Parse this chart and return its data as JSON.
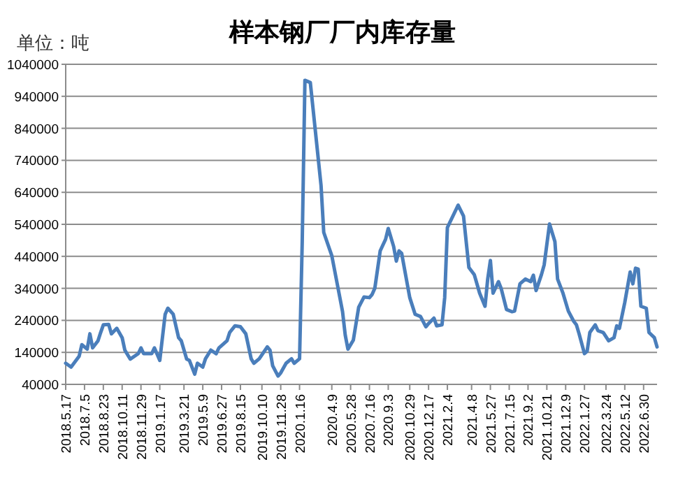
{
  "chart_data": {
    "type": "line",
    "title": "样本钢厂厂内库存量",
    "ylabel": "单位：吨",
    "color": "#4a7ebb",
    "grid": "y",
    "ylim": [
      40000,
      1040000
    ],
    "yticks": [
      40000,
      140000,
      240000,
      340000,
      440000,
      540000,
      640000,
      740000,
      840000,
      940000,
      1040000
    ],
    "xlim": [
      "2018-05-17",
      "2022-08-04"
    ],
    "xticks": [
      {
        "value": "2018-05-17",
        "label": "2018.5.17"
      },
      {
        "value": "2018-07-05",
        "label": "2018.7.5"
      },
      {
        "value": "2018-08-23",
        "label": "2018.8.23"
      },
      {
        "value": "2018-10-11",
        "label": "2018.10.11"
      },
      {
        "value": "2018-11-29",
        "label": "2018.11.29"
      },
      {
        "value": "2019-01-17",
        "label": "2019.1.17"
      },
      {
        "value": "2019-03-21",
        "label": "2019.3.21"
      },
      {
        "value": "2019-05-09",
        "label": "2019.5.9"
      },
      {
        "value": "2019-06-27",
        "label": "2019.6.27"
      },
      {
        "value": "2019-08-15",
        "label": "2019.8.15"
      },
      {
        "value": "2019-10-10",
        "label": "2019.10.10"
      },
      {
        "value": "2019-11-28",
        "label": "2019.11.28"
      },
      {
        "value": "2020-01-16",
        "label": "2020.1.16"
      },
      {
        "value": "2020-04-09",
        "label": "2020.4.9"
      },
      {
        "value": "2020-05-28",
        "label": "2020.5.28"
      },
      {
        "value": "2020-07-16",
        "label": "2020.7.16"
      },
      {
        "value": "2020-09-03",
        "label": "2020.9.3"
      },
      {
        "value": "2020-10-29",
        "label": "2020.10.29"
      },
      {
        "value": "2020-12-17",
        "label": "2020.12.17"
      },
      {
        "value": "2021-02-04",
        "label": "2021.2.4"
      },
      {
        "value": "2021-04-08",
        "label": "2021.4.8"
      },
      {
        "value": "2021-05-27",
        "label": "2021.5.27"
      },
      {
        "value": "2021-07-15",
        "label": "2021.7.15"
      },
      {
        "value": "2021-09-02",
        "label": "2021.9.2"
      },
      {
        "value": "2021-10-21",
        "label": "2021.10.21"
      },
      {
        "value": "2021-12-09",
        "label": "2021.12.9"
      },
      {
        "value": "2022-01-27",
        "label": "2022.1.27"
      },
      {
        "value": "2022-03-24",
        "label": "2022.3.24"
      },
      {
        "value": "2022-05-12",
        "label": "2022.5.12"
      },
      {
        "value": "2022-06-30",
        "label": "2022.6.30"
      }
    ],
    "x": [
      "2018-05-17",
      "2018-05-31",
      "2018-06-21",
      "2018-06-28",
      "2018-07-12",
      "2018-07-19",
      "2018-07-26",
      "2018-08-09",
      "2018-08-16",
      "2018-08-23",
      "2018-09-06",
      "2018-09-13",
      "2018-09-27",
      "2018-10-11",
      "2018-10-18",
      "2018-11-01",
      "2018-11-22",
      "2018-11-29",
      "2018-12-06",
      "2018-12-27",
      "2019-01-03",
      "2019-01-17",
      "2019-01-31",
      "2019-02-07",
      "2019-02-21",
      "2019-03-07",
      "2019-03-14",
      "2019-03-28",
      "2019-04-04",
      "2019-04-18",
      "2019-04-25",
      "2019-05-09",
      "2019-05-16",
      "2019-05-30",
      "2019-06-13",
      "2019-06-20",
      "2019-07-11",
      "2019-07-18",
      "2019-08-01",
      "2019-08-15",
      "2019-08-29",
      "2019-09-12",
      "2019-09-19",
      "2019-10-03",
      "2019-10-24",
      "2019-10-31",
      "2019-11-07",
      "2019-11-21",
      "2019-11-28",
      "2019-12-12",
      "2019-12-26",
      "2020-01-02",
      "2020-01-16",
      "2020-01-23",
      "2020-01-30",
      "2020-02-13",
      "2020-03-12",
      "2020-03-19",
      "2020-04-09",
      "2020-04-30",
      "2020-05-07",
      "2020-05-14",
      "2020-05-21",
      "2020-06-04",
      "2020-06-18",
      "2020-07-02",
      "2020-07-16",
      "2020-07-23",
      "2020-07-30",
      "2020-08-13",
      "2020-08-27",
      "2020-09-03",
      "2020-09-17",
      "2020-09-24",
      "2020-10-01",
      "2020-10-08",
      "2020-10-29",
      "2020-11-12",
      "2020-11-26",
      "2020-12-10",
      "2020-12-17",
      "2020-12-31",
      "2021-01-07",
      "2021-01-21",
      "2021-01-28",
      "2021-02-04",
      "2021-03-04",
      "2021-03-18",
      "2021-04-01",
      "2021-04-15",
      "2021-04-29",
      "2021-05-13",
      "2021-05-20",
      "2021-05-27",
      "2021-06-03",
      "2021-06-17",
      "2021-06-24",
      "2021-07-08",
      "2021-07-22",
      "2021-07-29",
      "2021-08-12",
      "2021-08-26",
      "2021-09-09",
      "2021-09-16",
      "2021-09-23",
      "2021-10-07",
      "2021-10-14",
      "2021-10-28",
      "2021-11-11",
      "2021-11-18",
      "2021-12-02",
      "2021-12-16",
      "2021-12-30",
      "2022-01-06",
      "2022-01-13",
      "2022-01-27",
      "2022-02-03",
      "2022-02-10",
      "2022-02-24",
      "2022-03-03",
      "2022-03-17",
      "2022-03-31",
      "2022-04-14",
      "2022-04-21",
      "2022-04-28",
      "2022-05-12",
      "2022-05-26",
      "2022-06-02",
      "2022-06-09",
      "2022-06-16",
      "2022-06-23",
      "2022-07-07",
      "2022-07-14",
      "2022-07-28",
      "2022-08-04"
    ],
    "values": [
      106000,
      94000,
      128000,
      164000,
      150000,
      198000,
      154000,
      176000,
      202000,
      226000,
      227000,
      198000,
      215000,
      186000,
      147000,
      119000,
      136000,
      154000,
      136000,
      136000,
      154000,
      115000,
      259000,
      278000,
      259000,
      186000,
      176000,
      119000,
      115000,
      72000,
      106000,
      94000,
      120000,
      147000,
      136000,
      154000,
      176000,
      202000,
      223000,
      220000,
      198000,
      120000,
      106000,
      120000,
      157000,
      147000,
      98000,
      66000,
      76000,
      106000,
      120000,
      106000,
      120000,
      487000,
      990000,
      983000,
      661000,
      515000,
      442000,
      311000,
      267000,
      194000,
      150000,
      178000,
      281000,
      313000,
      311000,
      321000,
      340000,
      457000,
      493000,
      527000,
      471000,
      425000,
      457000,
      449000,
      311000,
      259000,
      252000,
      220000,
      230000,
      247000,
      223000,
      226000,
      311000,
      530000,
      600000,
      566000,
      405000,
      383000,
      325000,
      284000,
      369000,
      427000,
      325000,
      361000,
      340000,
      274000,
      267000,
      269000,
      354000,
      369000,
      361000,
      381000,
      333000,
      383000,
      413000,
      541000,
      486000,
      369000,
      325000,
      269000,
      237000,
      226000,
      198000,
      136000,
      144000,
      202000,
      226000,
      208000,
      202000,
      176000,
      186000,
      223000,
      215000,
      296000,
      391000,
      354000,
      403000,
      400000,
      284000,
      278000,
      202000,
      186000,
      157000
    ]
  }
}
